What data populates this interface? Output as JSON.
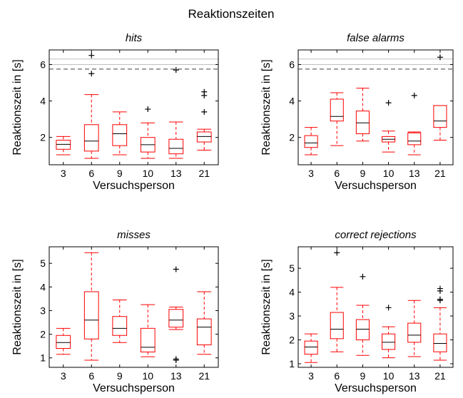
{
  "chart_data": {
    "type": "boxplot",
    "title": "Reaktionszeiten",
    "colors": {
      "box": "#ff0000",
      "median": "#000000",
      "outlier": "#000000",
      "axis": "#000000",
      "ref_line": "#bfbfbf",
      "dashed_line": "#000000"
    },
    "panels": [
      {
        "title": "hits",
        "xlabel": "Versuchsperson",
        "ylabel": "Reaktionszeit in [s]",
        "categories": [
          "3",
          "6",
          "9",
          "10",
          "13",
          "21"
        ],
        "ylim": [
          0.5,
          6.8
        ],
        "yticks": [
          2,
          4,
          6
        ],
        "ref_lines": [
          6.3,
          6.0
        ],
        "dashed_line": 5.75,
        "boxes": [
          {
            "whisker_low": 1.05,
            "q1": 1.35,
            "median": 1.62,
            "q3": 1.85,
            "whisker_high": 2.05,
            "outliers": []
          },
          {
            "whisker_low": 0.85,
            "q1": 1.25,
            "median": 1.8,
            "q3": 2.7,
            "whisker_high": 4.35,
            "outliers": [
              5.5,
              6.5
            ]
          },
          {
            "whisker_low": 1.05,
            "q1": 1.55,
            "median": 2.2,
            "q3": 2.7,
            "whisker_high": 3.4,
            "outliers": []
          },
          {
            "whisker_low": 0.85,
            "q1": 1.2,
            "median": 1.6,
            "q3": 2.0,
            "whisker_high": 2.8,
            "outliers": [
              3.55
            ]
          },
          {
            "whisker_low": 0.85,
            "q1": 1.1,
            "median": 1.4,
            "q3": 1.9,
            "whisker_high": 2.85,
            "outliers": [
              5.7
            ]
          },
          {
            "whisker_low": 1.3,
            "q1": 1.75,
            "median": 2.05,
            "q3": 2.3,
            "whisker_high": 2.45,
            "outliers": [
              3.4,
              4.3,
              4.5
            ]
          }
        ]
      },
      {
        "title": "false alarms",
        "xlabel": "Versuchsperson",
        "ylabel": "Reaktionszeit in [s]",
        "categories": [
          "3",
          "6",
          "9",
          "10",
          "13",
          "21"
        ],
        "ylim": [
          0.5,
          6.8
        ],
        "yticks": [
          2,
          4,
          6
        ],
        "ref_lines": [
          6.3,
          6.0
        ],
        "dashed_line": 5.75,
        "boxes": [
          {
            "whisker_low": 1.05,
            "q1": 1.45,
            "median": 1.7,
            "q3": 2.1,
            "whisker_high": 2.55,
            "outliers": []
          },
          {
            "whisker_low": 1.55,
            "q1": 2.9,
            "median": 3.15,
            "q3": 4.1,
            "whisker_high": 4.45,
            "outliers": []
          },
          {
            "whisker_low": 1.8,
            "q1": 2.2,
            "median": 2.8,
            "q3": 3.45,
            "whisker_high": 4.7,
            "outliers": []
          },
          {
            "whisker_low": 1.2,
            "q1": 1.75,
            "median": 1.9,
            "q3": 2.05,
            "whisker_high": 2.35,
            "outliers": [
              3.9
            ]
          },
          {
            "whisker_low": 1.05,
            "q1": 1.6,
            "median": 1.8,
            "q3": 2.25,
            "whisker_high": 2.3,
            "outliers": [
              4.3
            ]
          },
          {
            "whisker_low": 1.85,
            "q1": 2.55,
            "median": 2.9,
            "q3": 3.75,
            "whisker_high": 3.75,
            "outliers": [
              6.4
            ]
          }
        ]
      },
      {
        "title": "misses",
        "xlabel": "Versuchsperson",
        "ylabel": "Reaktionszeit in [s]",
        "categories": [
          "3",
          "6",
          "9",
          "10",
          "13",
          "21"
        ],
        "ylim": [
          0.6,
          5.7
        ],
        "yticks": [
          1,
          2,
          3,
          4,
          5
        ],
        "boxes": [
          {
            "whisker_low": 1.15,
            "q1": 1.4,
            "median": 1.65,
            "q3": 1.95,
            "whisker_high": 2.25,
            "outliers": []
          },
          {
            "whisker_low": 0.9,
            "q1": 1.8,
            "median": 2.6,
            "q3": 3.8,
            "whisker_high": 5.45,
            "outliers": []
          },
          {
            "whisker_low": 1.65,
            "q1": 1.95,
            "median": 2.25,
            "q3": 2.75,
            "whisker_high": 3.45,
            "outliers": []
          },
          {
            "whisker_low": 1.05,
            "q1": 1.25,
            "median": 1.45,
            "q3": 2.25,
            "whisker_high": 3.25,
            "outliers": []
          },
          {
            "whisker_low": 2.2,
            "q1": 2.3,
            "median": 2.6,
            "q3": 3.05,
            "whisker_high": 3.15,
            "outliers": [
              0.9,
              0.95,
              4.75
            ]
          },
          {
            "whisker_low": 1.15,
            "q1": 1.55,
            "median": 2.3,
            "q3": 2.65,
            "whisker_high": 3.8,
            "outliers": []
          }
        ]
      },
      {
        "title": "correct rejections",
        "xlabel": "Versuchsperson",
        "ylabel": "Reaktionszeit in [s]",
        "categories": [
          "3",
          "6",
          "9",
          "10",
          "13",
          "21"
        ],
        "ylim": [
          0.85,
          5.9
        ],
        "yticks": [
          1,
          2,
          3,
          4,
          5
        ],
        "boxes": [
          {
            "whisker_low": 1.05,
            "q1": 1.4,
            "median": 1.7,
            "q3": 1.95,
            "whisker_high": 2.25,
            "outliers": []
          },
          {
            "whisker_low": 1.5,
            "q1": 2.05,
            "median": 2.45,
            "q3": 3.15,
            "whisker_high": 4.2,
            "outliers": [
              5.65
            ]
          },
          {
            "whisker_low": 1.35,
            "q1": 2.0,
            "median": 2.45,
            "q3": 2.85,
            "whisker_high": 3.45,
            "outliers": [
              4.65
            ]
          },
          {
            "whisker_low": 1.25,
            "q1": 1.6,
            "median": 1.9,
            "q3": 2.25,
            "whisker_high": 2.55,
            "outliers": [
              3.35
            ]
          },
          {
            "whisker_low": 1.3,
            "q1": 1.9,
            "median": 2.2,
            "q3": 2.7,
            "whisker_high": 3.65,
            "outliers": []
          },
          {
            "whisker_low": 1.15,
            "q1": 1.5,
            "median": 1.85,
            "q3": 2.25,
            "whisker_high": 3.35,
            "outliers": [
              3.65,
              3.7,
              4.05,
              4.15
            ]
          }
        ]
      }
    ]
  }
}
